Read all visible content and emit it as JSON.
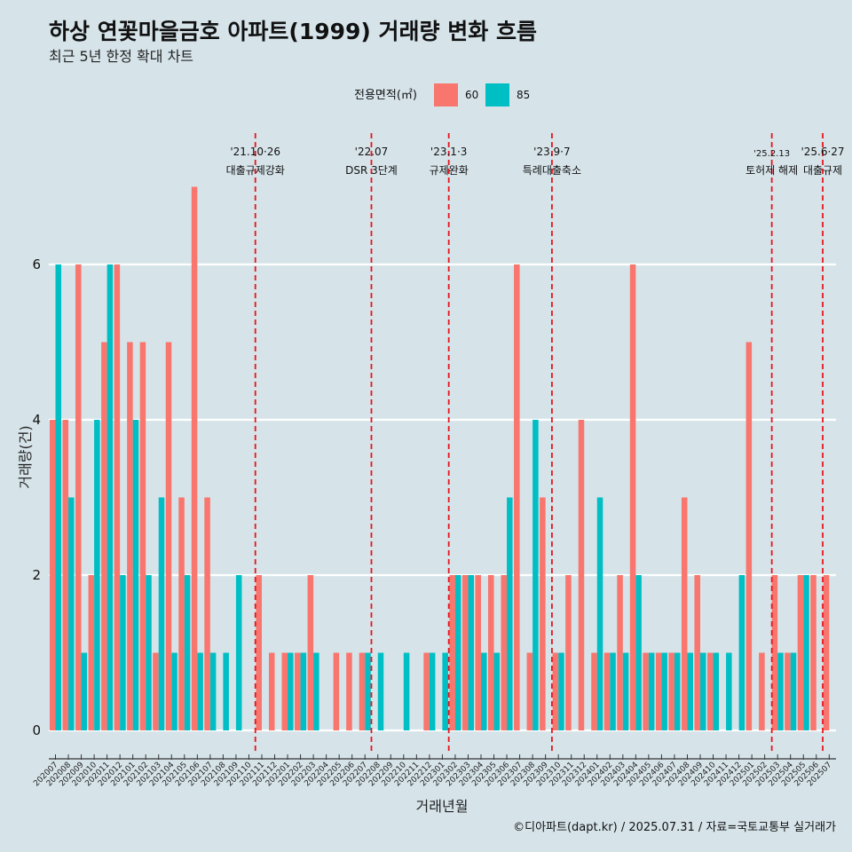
{
  "title": "하상 연꽃마을금호 아파트(1999) 거래량 변화 흐름",
  "subtitle": "최근 5년 한정 확대 차트",
  "caption": "©디아파트(dapt.kr) / 2025.07.31 / 자료=국토교통부 실거래가",
  "legend": {
    "title": "전용면적(㎡)",
    "items": [
      {
        "label": "60",
        "color": "#f8766d"
      },
      {
        "label": "85",
        "color": "#00bfc4"
      }
    ]
  },
  "chart_data": {
    "type": "bar",
    "xlabel": "거래년월",
    "ylabel": "거래량(건)",
    "ylim": [
      -0.3,
      7.5
    ],
    "yticks": [
      0,
      2,
      4,
      6
    ],
    "categories": [
      "202007",
      "202008",
      "202009",
      "202010",
      "202011",
      "202012",
      "202101",
      "202102",
      "202103",
      "202104",
      "202105",
      "202106",
      "202107",
      "202108",
      "202109",
      "202110",
      "202111",
      "202112",
      "202201",
      "202202",
      "202203",
      "202204",
      "202205",
      "202206",
      "202207",
      "202208",
      "202209",
      "202210",
      "202211",
      "202212",
      "202301",
      "202302",
      "202303",
      "202304",
      "202305",
      "202306",
      "202307",
      "202308",
      "202309",
      "202310",
      "202311",
      "202312",
      "202401",
      "202402",
      "202403",
      "202404",
      "202405",
      "202406",
      "202407",
      "202408",
      "202409",
      "202410",
      "202411",
      "202412",
      "202501",
      "202502",
      "202503",
      "202504",
      "202505",
      "202506",
      "202507"
    ],
    "series": [
      {
        "name": "60",
        "color": "#f8766d",
        "values": [
          4,
          4,
          6,
          2,
          5,
          6,
          5,
          5,
          1,
          5,
          3,
          7,
          3,
          0,
          0,
          0,
          2,
          1,
          1,
          1,
          2,
          0,
          1,
          1,
          1,
          0,
          0,
          0,
          0,
          1,
          0,
          2,
          2,
          2,
          2,
          2,
          6,
          1,
          3,
          1,
          2,
          4,
          1,
          1,
          2,
          6,
          1,
          1,
          1,
          3,
          2,
          1,
          0,
          0,
          5,
          1,
          2,
          1,
          2,
          2,
          2
        ]
      },
      {
        "name": "85",
        "color": "#00bfc4",
        "values": [
          6,
          3,
          1,
          4,
          6,
          2,
          4,
          2,
          3,
          1,
          2,
          1,
          1,
          1,
          2,
          0,
          0,
          0,
          1,
          1,
          1,
          0,
          0,
          0,
          1,
          1,
          0,
          1,
          0,
          1,
          1,
          2,
          2,
          1,
          1,
          3,
          0,
          4,
          0,
          1,
          0,
          0,
          3,
          1,
          1,
          2,
          1,
          1,
          1,
          1,
          1,
          1,
          1,
          2,
          0,
          0,
          1,
          1,
          2,
          0,
          0
        ]
      }
    ],
    "events": [
      {
        "date": "'21.10·26",
        "label": "대출규제강화",
        "x": 15.5
      },
      {
        "date": "'22.07",
        "label": "DSR 3단계",
        "x": 24.5
      },
      {
        "date": "'23.1·3",
        "label": "규제완화",
        "x": 30.5
      },
      {
        "date": "'23.9·7",
        "label": "특례대출축소",
        "x": 38.5
      },
      {
        "date": "'25.2.13",
        "label": "토허제 해제",
        "x": 55.55
      },
      {
        "date": "'25.6·27",
        "label": "대출규제",
        "x": 59.5
      }
    ]
  }
}
